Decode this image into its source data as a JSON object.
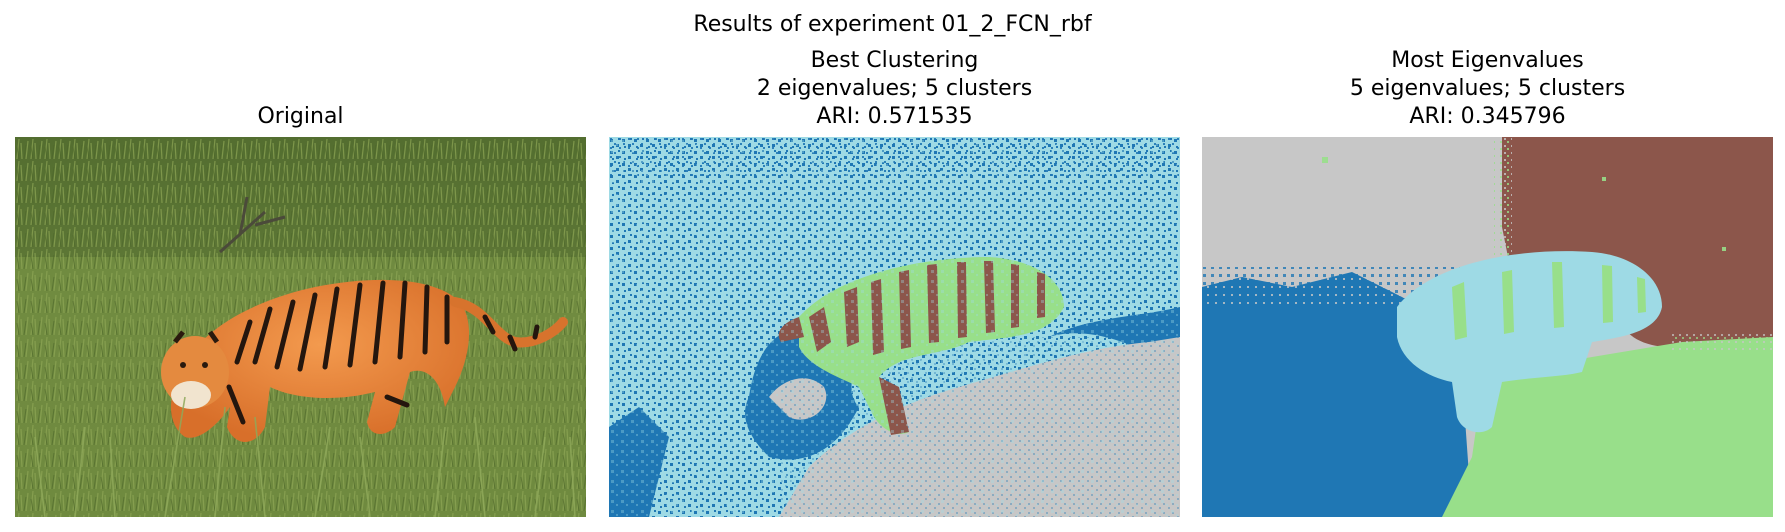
{
  "figure": {
    "title": "Results of experiment 01_2_FCN_rbf"
  },
  "panels": [
    {
      "title_lines": [
        "Original"
      ],
      "image": "photograph of a tiger walking through tall green grass"
    },
    {
      "title_lines": [
        "Best Clustering",
        "2 eigenvalues; 5 clusters",
        "ARI: 0.571535"
      ],
      "image": "segmentation map with 5 clusters"
    },
    {
      "title_lines": [
        "Most Eigenvalues",
        "5 eigenvalues; 5 clusters",
        "ARI: 0.345796"
      ],
      "image": "segmentation map with 5 clusters"
    }
  ],
  "cluster_colors": [
    "#1f77b4",
    "#9edae5",
    "#c7c7c7",
    "#98df8a",
    "#8c564b"
  ]
}
